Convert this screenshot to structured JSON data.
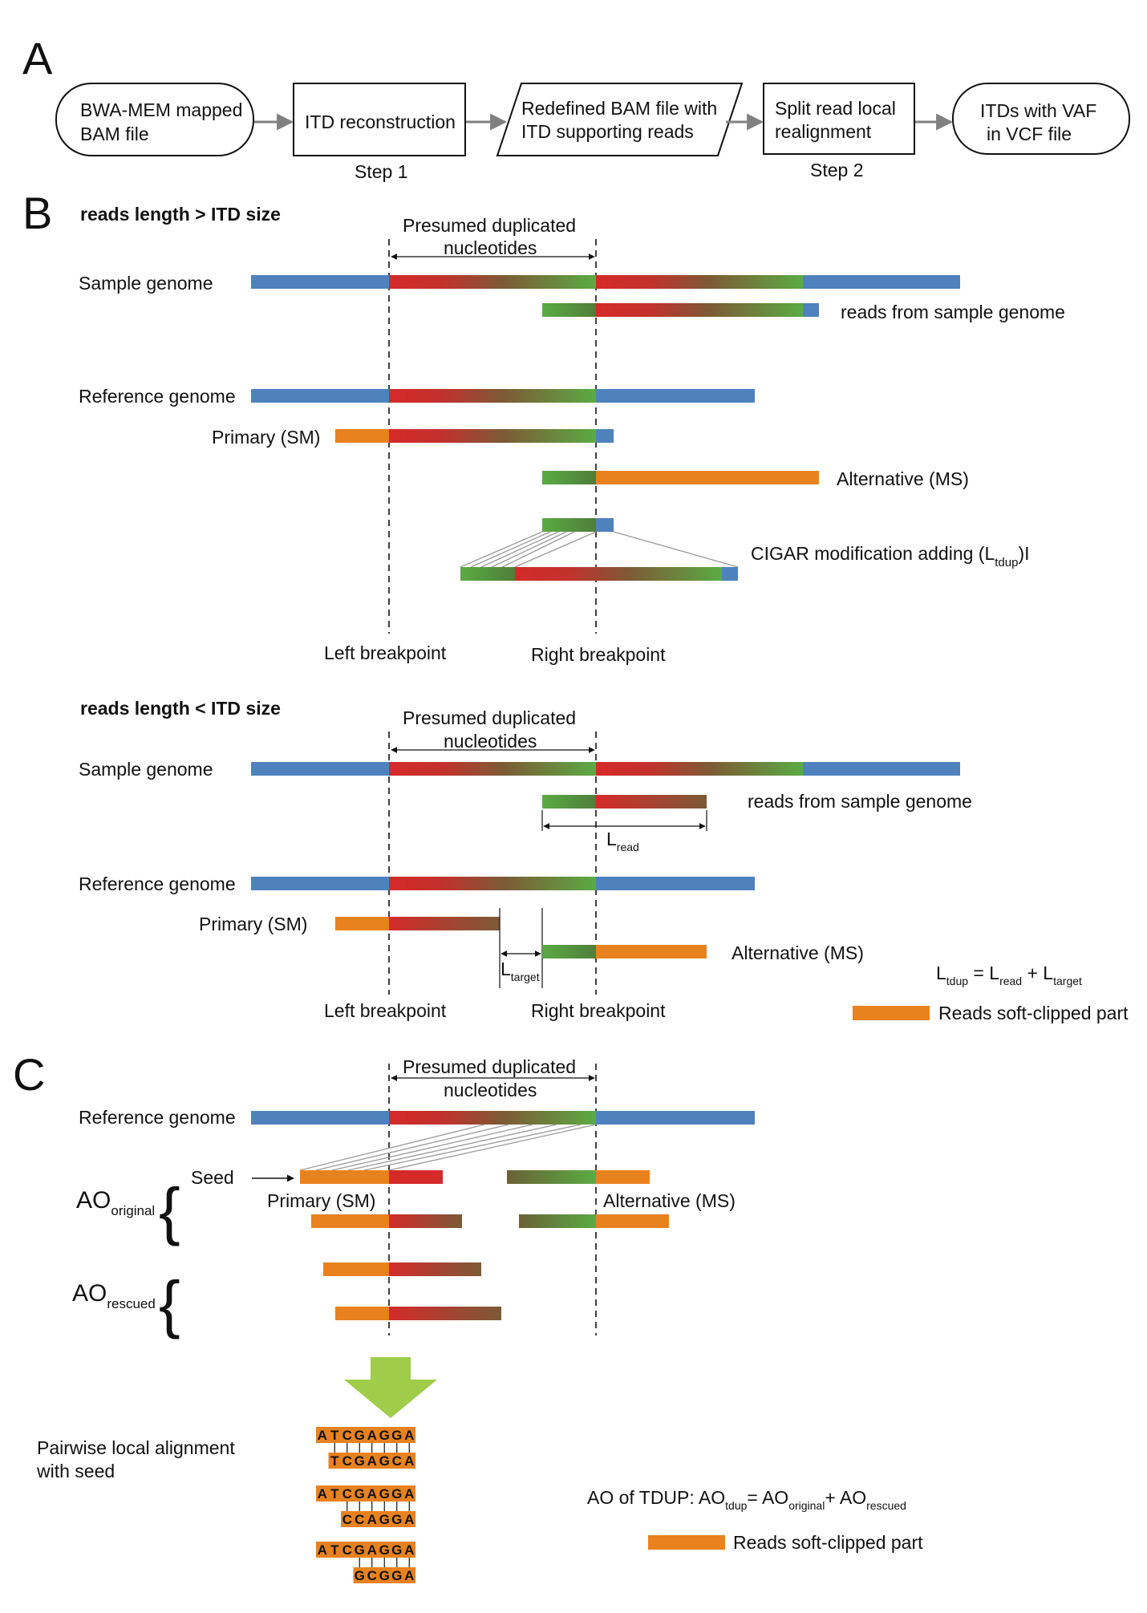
{
  "colors": {
    "blue": "#4f81bd",
    "red": "#d42a2a",
    "green": "#5aab44",
    "orange": "#e8821f",
    "arrow_green": "#9fcd4a",
    "line": "#444444"
  },
  "panel_a": {
    "label": "A",
    "boxes": [
      {
        "id": "bam",
        "shape": "rounded",
        "lines": [
          "BWA-MEM mapped",
          "BAM file"
        ]
      },
      {
        "id": "itd-recon",
        "shape": "rect",
        "lines": [
          "ITD reconstruction"
        ]
      },
      {
        "id": "redefined",
        "shape": "parallelogram",
        "lines": [
          "Redefined BAM file with",
          "ITD supporting reads"
        ]
      },
      {
        "id": "split-read",
        "shape": "rect",
        "lines": [
          "Split read local",
          "realignment"
        ]
      },
      {
        "id": "vcf",
        "shape": "rounded",
        "lines": [
          "ITDs with VAF",
          "in VCF file"
        ]
      }
    ],
    "step1": "Step 1",
    "step2": "Step 2"
  },
  "panel_b": {
    "label": "B",
    "top": {
      "heading": "reads length > ITD size",
      "presumed": [
        "Presumed duplicated",
        "nucleotides"
      ],
      "sample_genome": "Sample genome",
      "reads_from_sample": "reads from sample genome",
      "reference_genome": "Reference genome",
      "primary": "Primary (SM)",
      "alternative": "Alternative (MS)",
      "cigar_prefix": "CIGAR modification adding (L",
      "cigar_sub": "tdup",
      "cigar_suffix": ")I",
      "left_breakpoint": "Left breakpoint",
      "right_breakpoint": "Right breakpoint"
    },
    "bottom": {
      "heading": "reads length < ITD size",
      "presumed": [
        "Presumed duplicated",
        "nucleotides"
      ],
      "sample_genome": "Sample genome",
      "reads_from_sample": "reads from sample genome",
      "l_read_main": "L",
      "l_read_sub": "read",
      "reference_genome": "Reference genome",
      "primary": "Primary (SM)",
      "alternative": "Alternative (MS)",
      "l_target_main": "L",
      "l_target_sub": "target",
      "left_breakpoint": "Left breakpoint",
      "right_breakpoint": "Right breakpoint",
      "formula": {
        "l": "L",
        "tdup": "tdup",
        "eq": " = L",
        "read": "read",
        "plus": " + L",
        "target": "target"
      },
      "legend": "Reads soft-clipped part"
    }
  },
  "panel_c": {
    "label": "C",
    "presumed": [
      "Presumed duplicated",
      "nucleotides"
    ],
    "reference_genome": "Reference genome",
    "seed": "Seed",
    "ao_original_main": "AO",
    "ao_original_sub": "original",
    "primary": "Primary (SM)",
    "alternative": "Alternative (MS)",
    "ao_rescued_main": "AO",
    "ao_rescued_sub": "rescued",
    "pairwise": [
      "Pairwise local alignment",
      "with seed"
    ],
    "alignments": [
      {
        "top": "ATCGAGGA",
        "bottom": "TCGAGCA",
        "offset": 1
      },
      {
        "top": "ATCGAGGA",
        "bottom": "CCAGGA",
        "offset": 2
      },
      {
        "top": "ATCGAGGA",
        "bottom": "GCGGA",
        "offset": 3
      }
    ],
    "ao_formula": {
      "lead": "AO of TDUP:  AO",
      "tdup": "tdup",
      "eq": "= AO",
      "original": "original",
      "plus": "+ AO",
      "rescued": "rescued"
    },
    "legend": "Reads soft-clipped part"
  }
}
